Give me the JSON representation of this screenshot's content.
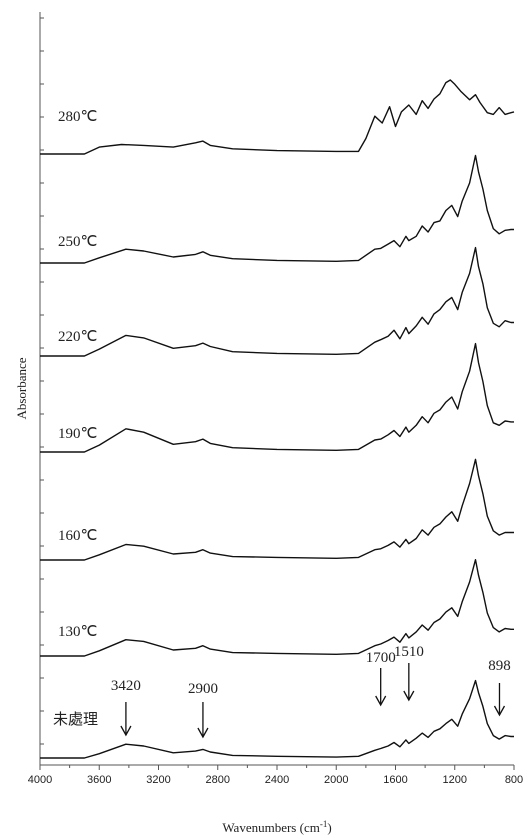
{
  "chart_data": {
    "type": "line",
    "title": "",
    "xlabel": "Wavenumbers (cm-1)",
    "xlabel_base": "Wavenumbers (cm",
    "xlabel_sup": "-1",
    "xlabel_tail": ")",
    "ylabel": "Absorbance",
    "xlim": [
      4000,
      800
    ],
    "x_reversed": true,
    "grid": false,
    "x_ticks": [
      4000,
      3600,
      3200,
      2800,
      2400,
      2000,
      1600,
      1200,
      800
    ],
    "series": [
      {
        "name": "280℃",
        "baseline": 0.2,
        "points": [
          [
            4000,
            0
          ],
          [
            3700,
            0
          ],
          [
            3600,
            0.8
          ],
          [
            3450,
            1.1
          ],
          [
            3300,
            1.0
          ],
          [
            3100,
            0.8
          ],
          [
            2950,
            1.3
          ],
          [
            2900,
            1.5
          ],
          [
            2850,
            1.0
          ],
          [
            2700,
            0.6
          ],
          [
            2400,
            0.4
          ],
          [
            2000,
            0.3
          ],
          [
            1850,
            0.3
          ],
          [
            1800,
            1.8
          ],
          [
            1740,
            4.4
          ],
          [
            1690,
            3.6
          ],
          [
            1640,
            5.5
          ],
          [
            1600,
            3.2
          ],
          [
            1560,
            4.9
          ],
          [
            1510,
            5.7
          ],
          [
            1460,
            4.6
          ],
          [
            1420,
            6.2
          ],
          [
            1380,
            5.3
          ],
          [
            1340,
            6.4
          ],
          [
            1300,
            7.0
          ],
          [
            1260,
            8.3
          ],
          [
            1230,
            8.6
          ],
          [
            1200,
            8.1
          ],
          [
            1160,
            7.3
          ],
          [
            1100,
            6.3
          ],
          [
            1060,
            6.9
          ],
          [
            1030,
            6.0
          ],
          [
            980,
            4.8
          ],
          [
            940,
            4.6
          ],
          [
            900,
            5.4
          ],
          [
            860,
            4.6
          ],
          [
            820,
            4.8
          ],
          [
            800,
            4.9
          ]
        ]
      },
      {
        "name": "250℃",
        "baseline": 0.2,
        "points": [
          [
            4000,
            0
          ],
          [
            3700,
            0
          ],
          [
            3600,
            0.6
          ],
          [
            3420,
            1.6
          ],
          [
            3300,
            1.4
          ],
          [
            3100,
            0.7
          ],
          [
            2950,
            1.0
          ],
          [
            2900,
            1.3
          ],
          [
            2850,
            0.9
          ],
          [
            2700,
            0.5
          ],
          [
            2400,
            0.3
          ],
          [
            2000,
            0.2
          ],
          [
            1850,
            0.3
          ],
          [
            1740,
            1.6
          ],
          [
            1700,
            1.7
          ],
          [
            1650,
            2.2
          ],
          [
            1610,
            2.6
          ],
          [
            1570,
            1.9
          ],
          [
            1530,
            3.1
          ],
          [
            1510,
            2.6
          ],
          [
            1460,
            3.1
          ],
          [
            1420,
            4.3
          ],
          [
            1380,
            3.6
          ],
          [
            1340,
            4.7
          ],
          [
            1300,
            4.9
          ],
          [
            1260,
            6.1
          ],
          [
            1220,
            6.7
          ],
          [
            1180,
            5.4
          ],
          [
            1150,
            7.2
          ],
          [
            1100,
            9.3
          ],
          [
            1060,
            12.5
          ],
          [
            1040,
            10.6
          ],
          [
            1010,
            8.6
          ],
          [
            980,
            6.1
          ],
          [
            940,
            4.0
          ],
          [
            900,
            3.4
          ],
          [
            860,
            3.8
          ],
          [
            820,
            3.9
          ],
          [
            800,
            3.9
          ]
        ]
      },
      {
        "name": "220℃",
        "baseline": 0.2,
        "points": [
          [
            4000,
            0
          ],
          [
            3700,
            0
          ],
          [
            3600,
            0.8
          ],
          [
            3420,
            2.4
          ],
          [
            3300,
            2.1
          ],
          [
            3100,
            0.9
          ],
          [
            2950,
            1.2
          ],
          [
            2900,
            1.5
          ],
          [
            2850,
            1.1
          ],
          [
            2700,
            0.5
          ],
          [
            2400,
            0.3
          ],
          [
            2000,
            0.2
          ],
          [
            1850,
            0.3
          ],
          [
            1740,
            1.6
          ],
          [
            1700,
            1.9
          ],
          [
            1650,
            2.3
          ],
          [
            1610,
            3.0
          ],
          [
            1570,
            2.0
          ],
          [
            1530,
            3.3
          ],
          [
            1510,
            2.6
          ],
          [
            1460,
            3.5
          ],
          [
            1420,
            4.5
          ],
          [
            1380,
            3.7
          ],
          [
            1340,
            4.9
          ],
          [
            1300,
            5.4
          ],
          [
            1260,
            6.3
          ],
          [
            1220,
            6.8
          ],
          [
            1180,
            5.4
          ],
          [
            1150,
            7.4
          ],
          [
            1100,
            9.6
          ],
          [
            1060,
            12.6
          ],
          [
            1040,
            10.4
          ],
          [
            1010,
            8.4
          ],
          [
            980,
            5.6
          ],
          [
            940,
            3.8
          ],
          [
            900,
            3.4
          ],
          [
            860,
            4.1
          ],
          [
            820,
            3.9
          ],
          [
            800,
            3.9
          ]
        ]
      },
      {
        "name": "190℃",
        "baseline": 0.2,
        "points": [
          [
            4000,
            0
          ],
          [
            3700,
            0
          ],
          [
            3600,
            0.8
          ],
          [
            3420,
            2.7
          ],
          [
            3300,
            2.3
          ],
          [
            3100,
            0.9
          ],
          [
            2950,
            1.2
          ],
          [
            2900,
            1.5
          ],
          [
            2850,
            1.0
          ],
          [
            2700,
            0.5
          ],
          [
            2400,
            0.3
          ],
          [
            2000,
            0.2
          ],
          [
            1850,
            0.3
          ],
          [
            1740,
            1.4
          ],
          [
            1700,
            1.5
          ],
          [
            1650,
            2.0
          ],
          [
            1610,
            2.5
          ],
          [
            1570,
            1.8
          ],
          [
            1530,
            2.9
          ],
          [
            1510,
            2.3
          ],
          [
            1460,
            3.1
          ],
          [
            1420,
            4.1
          ],
          [
            1380,
            3.4
          ],
          [
            1340,
            4.5
          ],
          [
            1300,
            4.9
          ],
          [
            1260,
            5.8
          ],
          [
            1220,
            6.4
          ],
          [
            1180,
            5.0
          ],
          [
            1150,
            7.0
          ],
          [
            1100,
            9.4
          ],
          [
            1060,
            12.6
          ],
          [
            1040,
            10.4
          ],
          [
            1010,
            8.2
          ],
          [
            980,
            5.4
          ],
          [
            940,
            3.4
          ],
          [
            900,
            3.1
          ],
          [
            860,
            3.6
          ],
          [
            820,
            3.5
          ],
          [
            800,
            3.5
          ]
        ]
      },
      {
        "name": "160℃",
        "baseline": 0.2,
        "points": [
          [
            4000,
            0
          ],
          [
            3700,
            0
          ],
          [
            3600,
            0.6
          ],
          [
            3420,
            1.8
          ],
          [
            3300,
            1.6
          ],
          [
            3100,
            0.7
          ],
          [
            2950,
            0.9
          ],
          [
            2900,
            1.2
          ],
          [
            2850,
            0.8
          ],
          [
            2700,
            0.4
          ],
          [
            2400,
            0.3
          ],
          [
            2000,
            0.2
          ],
          [
            1850,
            0.3
          ],
          [
            1740,
            1.2
          ],
          [
            1700,
            1.3
          ],
          [
            1650,
            1.7
          ],
          [
            1610,
            2.1
          ],
          [
            1570,
            1.5
          ],
          [
            1530,
            2.4
          ],
          [
            1510,
            1.9
          ],
          [
            1460,
            2.5
          ],
          [
            1420,
            3.5
          ],
          [
            1380,
            2.9
          ],
          [
            1340,
            3.8
          ],
          [
            1300,
            4.2
          ],
          [
            1260,
            5.0
          ],
          [
            1220,
            5.6
          ],
          [
            1180,
            4.5
          ],
          [
            1150,
            6.3
          ],
          [
            1100,
            8.9
          ],
          [
            1060,
            11.7
          ],
          [
            1040,
            9.8
          ],
          [
            1010,
            7.7
          ],
          [
            980,
            5.1
          ],
          [
            940,
            3.4
          ],
          [
            900,
            2.9
          ],
          [
            860,
            3.2
          ],
          [
            820,
            3.2
          ],
          [
            800,
            3.2
          ]
        ]
      },
      {
        "name": "130℃",
        "baseline": 0.2,
        "points": [
          [
            4000,
            0
          ],
          [
            3700,
            0
          ],
          [
            3600,
            0.6
          ],
          [
            3420,
            1.9
          ],
          [
            3300,
            1.7
          ],
          [
            3100,
            0.7
          ],
          [
            2950,
            0.9
          ],
          [
            2900,
            1.2
          ],
          [
            2850,
            0.8
          ],
          [
            2700,
            0.4
          ],
          [
            2400,
            0.3
          ],
          [
            2000,
            0.2
          ],
          [
            1850,
            0.3
          ],
          [
            1740,
            1.2
          ],
          [
            1700,
            1.4
          ],
          [
            1650,
            1.8
          ],
          [
            1610,
            2.2
          ],
          [
            1570,
            1.6
          ],
          [
            1530,
            2.6
          ],
          [
            1510,
            2.1
          ],
          [
            1460,
            2.8
          ],
          [
            1420,
            3.6
          ],
          [
            1380,
            3.0
          ],
          [
            1340,
            3.9
          ],
          [
            1300,
            4.3
          ],
          [
            1260,
            5.1
          ],
          [
            1220,
            5.6
          ],
          [
            1180,
            4.6
          ],
          [
            1150,
            6.3
          ],
          [
            1100,
            8.6
          ],
          [
            1060,
            11.2
          ],
          [
            1040,
            9.4
          ],
          [
            1010,
            7.4
          ],
          [
            980,
            5.0
          ],
          [
            940,
            3.3
          ],
          [
            900,
            2.8
          ],
          [
            860,
            3.2
          ],
          [
            820,
            3.1
          ],
          [
            800,
            3.1
          ]
        ]
      },
      {
        "name": "未處理",
        "baseline": 0.2,
        "points": [
          [
            4000,
            0
          ],
          [
            3700,
            0
          ],
          [
            3600,
            0.5
          ],
          [
            3420,
            1.6
          ],
          [
            3300,
            1.4
          ],
          [
            3100,
            0.6
          ],
          [
            2950,
            0.8
          ],
          [
            2900,
            1.0
          ],
          [
            2850,
            0.7
          ],
          [
            2700,
            0.3
          ],
          [
            2400,
            0.2
          ],
          [
            2000,
            0.1
          ],
          [
            1850,
            0.2
          ],
          [
            1740,
            0.9
          ],
          [
            1700,
            1.1
          ],
          [
            1650,
            1.4
          ],
          [
            1610,
            1.8
          ],
          [
            1570,
            1.3
          ],
          [
            1530,
            2.1
          ],
          [
            1510,
            1.7
          ],
          [
            1460,
            2.3
          ],
          [
            1420,
            2.9
          ],
          [
            1380,
            2.4
          ],
          [
            1340,
            3.1
          ],
          [
            1300,
            3.4
          ],
          [
            1260,
            4.0
          ],
          [
            1220,
            4.5
          ],
          [
            1180,
            3.7
          ],
          [
            1150,
            5.1
          ],
          [
            1100,
            6.9
          ],
          [
            1060,
            9.0
          ],
          [
            1040,
            7.6
          ],
          [
            1010,
            6.0
          ],
          [
            980,
            4.0
          ],
          [
            940,
            2.6
          ],
          [
            900,
            2.2
          ],
          [
            860,
            2.6
          ],
          [
            820,
            2.5
          ],
          [
            800,
            2.5
          ]
        ]
      }
    ],
    "annotations": [
      {
        "label": "3420",
        "x": 3420
      },
      {
        "label": "2900",
        "x": 2900
      },
      {
        "label": "1700",
        "x": 1700
      },
      {
        "label": "1510",
        "x": 1510
      },
      {
        "label": "898",
        "x": 898
      }
    ]
  }
}
